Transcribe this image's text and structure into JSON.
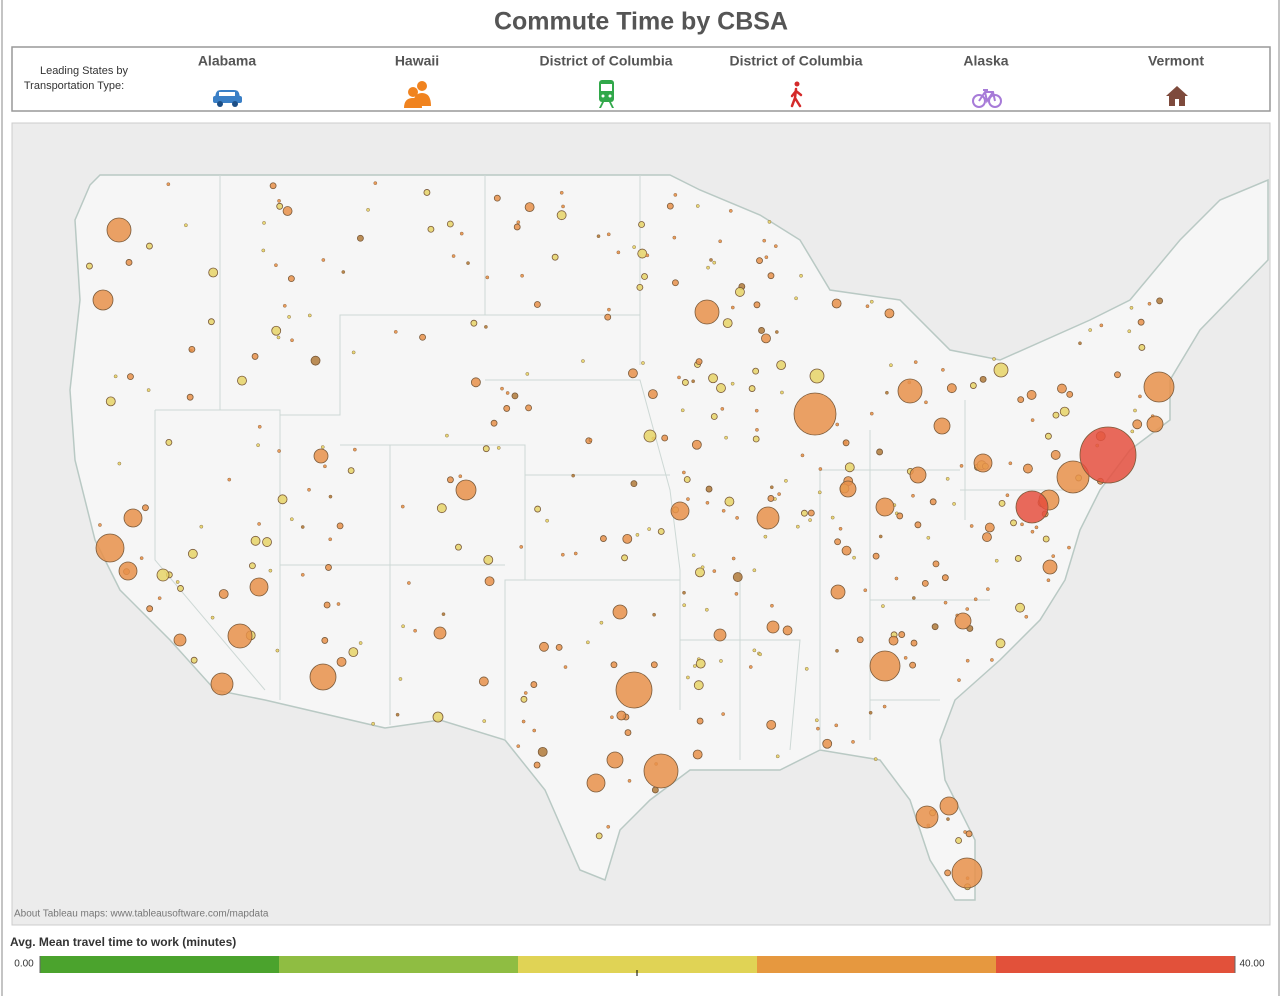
{
  "header": {
    "title": "Commute Time by CBSA"
  },
  "leading_states": {
    "label_line1": "Leading States by",
    "label_line2": "Transportation Type:",
    "items": [
      "Alabama",
      "Hawaii",
      "District of Columbia",
      "District of Columbia",
      "Alaska",
      "Vermont"
    ]
  },
  "map": {
    "attribution": "About Tableau maps: www.tableausoftware.com/mapdata"
  },
  "legend": {
    "title": "Avg. Mean travel time to work (minutes)",
    "min": {
      "value": 0,
      "label": "0.00"
    },
    "max": {
      "value": 40,
      "label": "40.00"
    },
    "colors": [
      "#4ba32d",
      "#8fbd42",
      "#e0d355",
      "#e6983f",
      "#e2513a"
    ]
  }
}
